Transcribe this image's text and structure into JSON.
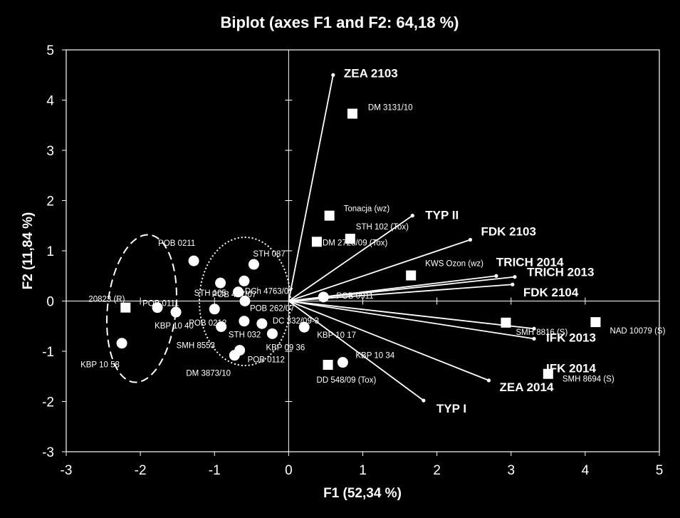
{
  "chart_data": {
    "type": "scatter",
    "title": "Biplot (axes F1 and F2: 64,18 %)",
    "xlabel": "F1 (52,34 %)",
    "ylabel": "F2 (11,84 %)",
    "xlim": [
      -3,
      5
    ],
    "ylim": [
      -3,
      5
    ],
    "xticks": [
      "-3",
      "-2",
      "-1",
      "0",
      "1",
      "2",
      "3",
      "4",
      "5"
    ],
    "yticks": [
      "-3",
      "-2",
      "-1",
      "0",
      "1",
      "2",
      "3",
      "4",
      "5"
    ],
    "grid": false,
    "legend": "none",
    "colors": {
      "background": "#000000",
      "foreground": "#ffffff"
    },
    "variables": [
      {
        "label": "ZEA 2103",
        "x": 0.6,
        "y": 4.5
      },
      {
        "label": "TYP II",
        "x": 1.67,
        "y": 1.7
      },
      {
        "label": "FDK 2103",
        "x": 2.45,
        "y": 1.22
      },
      {
        "label": "TRICH 2014",
        "x": 2.8,
        "y": 0.5
      },
      {
        "label": "TRICH 2013",
        "x": 3.05,
        "y": 0.48
      },
      {
        "label": "FDK 2104",
        "x": 3.02,
        "y": 0.33
      },
      {
        "label": "IFK 2013",
        "x": 3.31,
        "y": -0.55
      },
      {
        "label": "IFK 2014",
        "x": 3.31,
        "y": -0.75
      },
      {
        "label": "ZEA 2014",
        "x": 2.7,
        "y": -1.58
      },
      {
        "label": "TYP I",
        "x": 1.82,
        "y": -1.98
      }
    ],
    "observations_square": [
      {
        "label": "20823 (R)",
        "x": -2.2,
        "y": -0.13
      },
      {
        "label": "DM 3131/10",
        "x": 0.86,
        "y": 3.73
      },
      {
        "label": "Tonacja (wz)",
        "x": 0.55,
        "y": 1.7
      },
      {
        "label": "STH 102 (Tox)",
        "x": 0.83,
        "y": 1.24
      },
      {
        "label": "DM 2728/09 (Tox)",
        "x": 0.38,
        "y": 1.18
      },
      {
        "label": "KWS Ozon (wz)",
        "x": 1.65,
        "y": 0.51
      },
      {
        "label": "SMH 8816 (S)",
        "x": 2.93,
        "y": -0.43
      },
      {
        "label": "NAD 10079 (S)",
        "x": 4.14,
        "y": -0.42
      },
      {
        "label": "SMH 8694 (S)",
        "x": 3.5,
        "y": -1.45
      },
      {
        "label": "DD 548/09 (Tox)",
        "x": 0.53,
        "y": -1.27
      }
    ],
    "observations_circle": [
      {
        "label": "POB 0211",
        "x": -1.28,
        "y": 0.8
      },
      {
        "label": "POB 0111",
        "x": -1.77,
        "y": -0.13
      },
      {
        "label": "KBP 10 40",
        "x": -1.52,
        "y": -0.22
      },
      {
        "label": "KBP 10 58",
        "x": -2.25,
        "y": -0.84
      },
      {
        "label": "STH 087",
        "x": -0.47,
        "y": 0.73
      },
      {
        "label": "POB 457/07",
        "x": -0.92,
        "y": 0.36
      },
      {
        "label": "DCh 4763/07",
        "x": -0.6,
        "y": 0.4
      },
      {
        "label": "STH 105",
        "x": -0.68,
        "y": 0.18
      },
      {
        "label": "POB 262/07",
        "x": -0.59,
        "y": 0.0
      },
      {
        "label": "POB 0212",
        "x": -1.0,
        "y": -0.16
      },
      {
        "label": "SMH 8553",
        "x": -0.91,
        "y": -0.51
      },
      {
        "label": "STH 032",
        "x": -0.6,
        "y": -0.4
      },
      {
        "label": "DC 332/09-3",
        "x": -0.36,
        "y": -0.45
      },
      {
        "label": "KBP 09 36",
        "x": -0.22,
        "y": -0.65
      },
      {
        "label": "DM 3873/10",
        "x": -0.73,
        "y": -1.08
      },
      {
        "label": "POB 0112",
        "x": -0.66,
        "y": -0.98
      },
      {
        "label": "POB 0911",
        "x": 0.47,
        "y": 0.08
      },
      {
        "label": "KBP 10 17",
        "x": 0.21,
        "y": -0.52
      },
      {
        "label": "KBP 10 34",
        "x": 0.73,
        "y": -1.22
      }
    ]
  }
}
